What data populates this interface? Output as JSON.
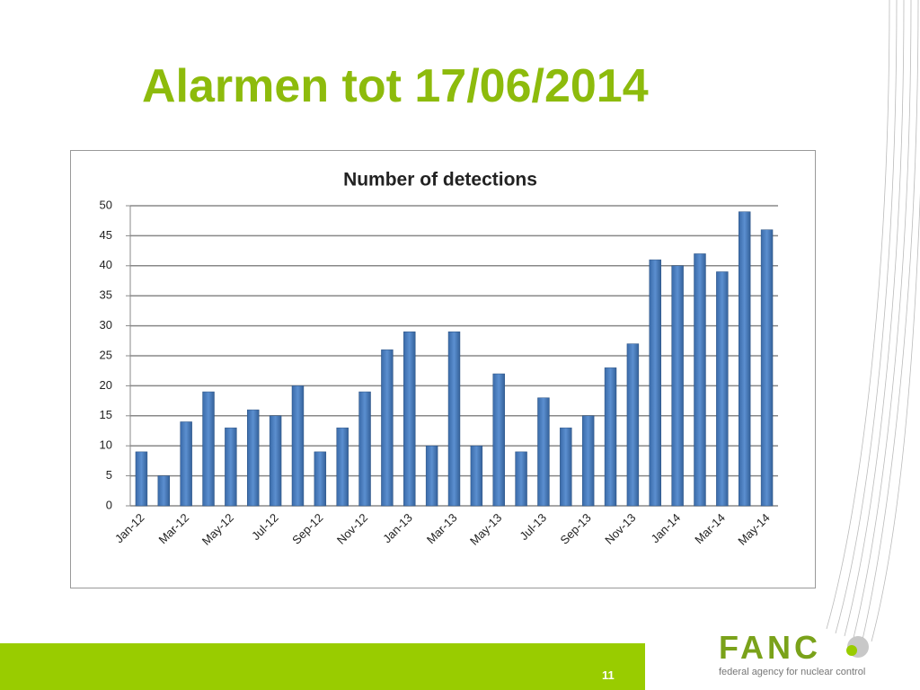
{
  "slide": {
    "title": "Alarmen tot 17/06/2014",
    "page_number": "11",
    "logo": {
      "name": "FANC",
      "tagline": "federal agency for nuclear control"
    }
  },
  "chart_data": {
    "type": "bar",
    "title": "Number of detections",
    "categories": [
      "Jan-12",
      null,
      "Mar-12",
      null,
      "May-12",
      null,
      "Jul-12",
      null,
      "Sep-12",
      null,
      "Nov-12",
      null,
      "Jan-13",
      null,
      "Mar-13",
      null,
      "May-13",
      null,
      "Jul-13",
      null,
      "Sep-13",
      null,
      "Nov-13",
      null,
      "Jan-14",
      null,
      "Mar-14",
      null,
      "May-14"
    ],
    "values": [
      9,
      5,
      14,
      19,
      13,
      16,
      15,
      20,
      9,
      13,
      19,
      26,
      29,
      10,
      29,
      10,
      22,
      9,
      18,
      13,
      15,
      23,
      27,
      41,
      40,
      42,
      39,
      49,
      46
    ],
    "color": "#4f81bd",
    "ylim": [
      0,
      50
    ],
    "yticks": [
      0,
      5,
      10,
      15,
      20,
      25,
      30,
      35,
      40,
      45,
      50
    ],
    "grid": true
  }
}
